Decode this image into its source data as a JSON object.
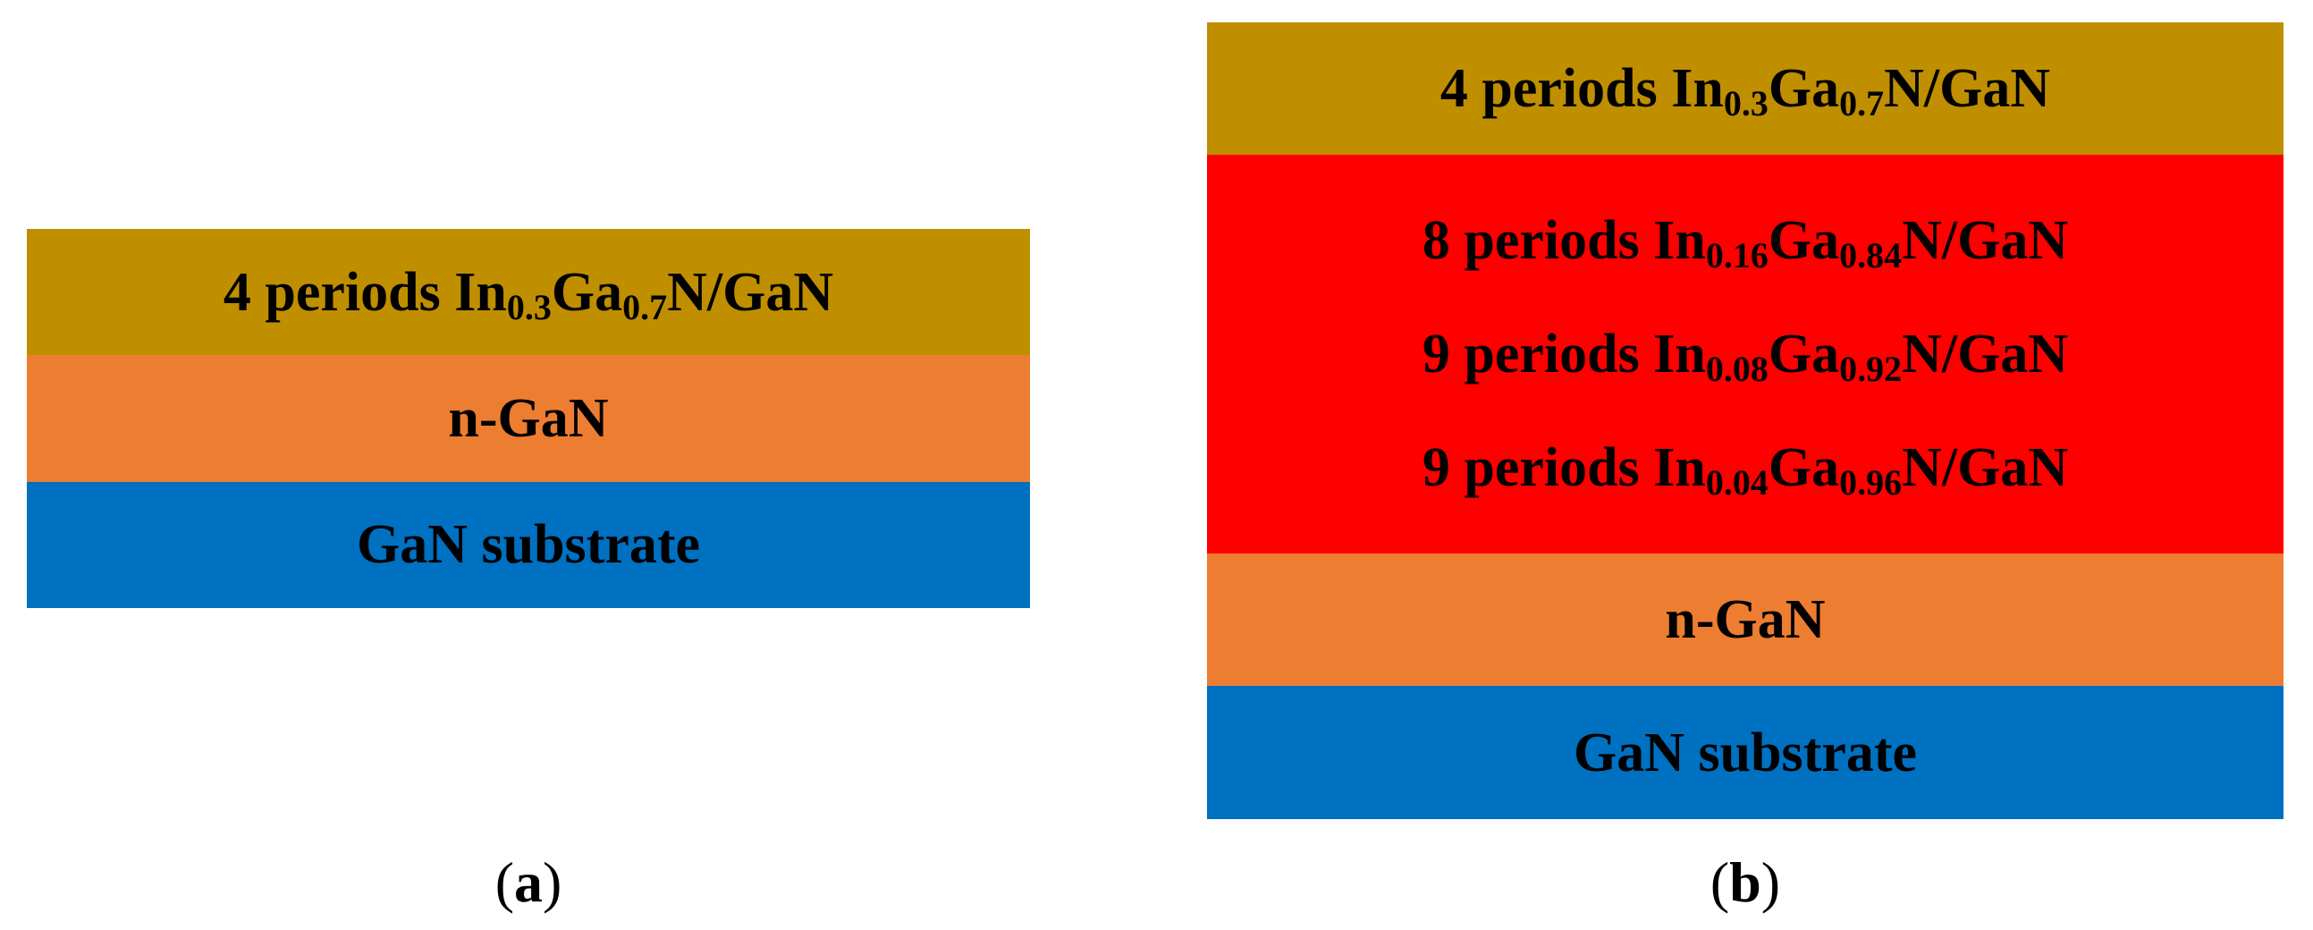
{
  "panels": [
    {
      "caption": [
        "(",
        "a",
        ")"
      ],
      "layers": [
        {
          "color": "#bf8f00",
          "lines": [
            [
              "4 periods In",
              "0.3",
              "Ga",
              "0.7",
              "N/GaN"
            ]
          ]
        },
        {
          "color": "#ed7d31",
          "lines": [
            [
              "n-GaN"
            ]
          ]
        },
        {
          "color": "#0070c0",
          "lines": [
            [
              "GaN substrate"
            ]
          ]
        }
      ]
    },
    {
      "caption": [
        "(",
        "b",
        ")"
      ],
      "layers": [
        {
          "color": "#bf8f00",
          "lines": [
            [
              "4 periods In",
              "0.3",
              "Ga",
              "0.7",
              "N/GaN"
            ]
          ]
        },
        {
          "color": "#ff0000",
          "lines": [
            [
              "8 periods In",
              "0.16",
              "Ga",
              "0.84",
              "N/GaN"
            ],
            [
              "9 periods In",
              "0.08",
              "Ga",
              "0.92",
              "N/GaN"
            ],
            [
              "9 periods In",
              "0.04",
              "Ga",
              "0.96",
              "N/GaN"
            ]
          ]
        },
        {
          "color": "#ed7d31",
          "lines": [
            [
              "n-GaN"
            ]
          ]
        },
        {
          "color": "#0070c0",
          "lines": [
            [
              "GaN substrate"
            ]
          ]
        }
      ]
    }
  ]
}
